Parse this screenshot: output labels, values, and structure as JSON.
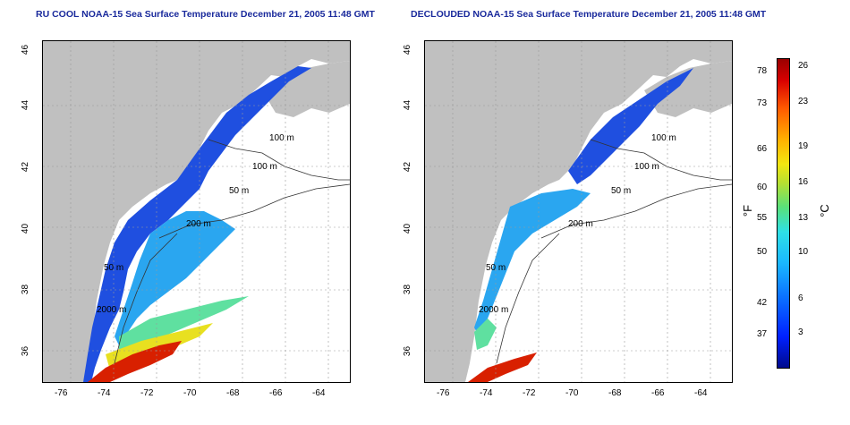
{
  "titles": {
    "left": "RU COOL NOAA-15 Sea Surface Temperature December 21, 2005 11:48 GMT",
    "right": "DECLOUDED NOAA-15 Sea Surface Temperature December 21, 2005 11:48 GMT"
  },
  "axes": {
    "lon_ticks": [
      "-76",
      "-74",
      "-72",
      "-70",
      "-68",
      "-66",
      "-64"
    ],
    "lat_ticks": [
      "46",
      "44",
      "42",
      "40",
      "38",
      "36"
    ]
  },
  "isobaths": {
    "left": [
      "100 m",
      "100 m",
      "50 m",
      "200 m",
      "50 m",
      "2000 m"
    ],
    "right": [
      "100 m",
      "100 m",
      "50 m",
      "200 m",
      "50 m",
      "2000 m"
    ]
  },
  "colorbar": {
    "fahrenheit_ticks": [
      "78",
      "73",
      "66",
      "60",
      "55",
      "50",
      "42",
      "37"
    ],
    "celsius_ticks": [
      "26",
      "23",
      "19",
      "16",
      "13",
      "10",
      "6",
      "3"
    ],
    "fahrenheit_unit": "°F",
    "celsius_unit": "°C"
  },
  "colors": {
    "land": "#c0c0c0",
    "cold": "#1f4fe0",
    "cool": "#2aa6f0",
    "mid": "#5fe0a0",
    "warm": "#e8e020",
    "hot": "#d82000",
    "title": "#1a2a9c"
  }
}
